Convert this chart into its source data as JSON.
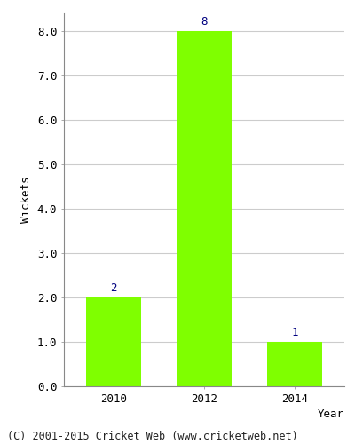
{
  "years": [
    "2010",
    "2012",
    "2014"
  ],
  "values": [
    2,
    8,
    1
  ],
  "bar_color": "#7FFF00",
  "bar_edge_color": "#7FFF00",
  "label_color": "#000080",
  "year_label": "Year",
  "ylabel": "Wickets",
  "ylim": [
    0,
    8.4
  ],
  "yticks": [
    0.0,
    1.0,
    2.0,
    3.0,
    4.0,
    5.0,
    6.0,
    7.0,
    8.0
  ],
  "background_color": "#ffffff",
  "grid_color": "#cccccc",
  "footer_text": "(C) 2001-2015 Cricket Web (www.cricketweb.net)",
  "bar_width": 0.6,
  "label_fontsize": 9,
  "axis_fontsize": 9,
  "footer_fontsize": 8.5
}
